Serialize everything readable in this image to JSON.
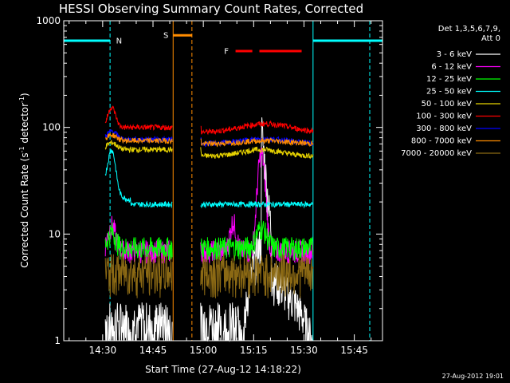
{
  "chart_data": {
    "type": "line",
    "title": "HESSI Observing Summary Count Rates, Corrected",
    "xlabel": "Start Time (27-Aug-12 14:18:22)",
    "ylabel": "Corrected Count Rate (s⁻¹ detector⁻¹)",
    "ylabel_parts": {
      "main": "Corrected Count Rate (s",
      "sup1": "-1",
      "mid": " detector",
      "sup2": "-1",
      "end": ")"
    },
    "y_scale": "log",
    "ylim": [
      1,
      1000
    ],
    "xlim_minutes": [
      0,
      95
    ],
    "x_ticks": [
      {
        "label": "14:30",
        "t": 11.6
      },
      {
        "label": "14:45",
        "t": 26.6
      },
      {
        "label": "15:00",
        "t": 41.6
      },
      {
        "label": "15:15",
        "t": 56.6
      },
      {
        "label": "15:30",
        "t": 71.6
      },
      {
        "label": "15:45",
        "t": 86.6
      }
    ],
    "y_ticks": [
      {
        "label": "1",
        "v": 1
      },
      {
        "label": "10",
        "v": 10
      },
      {
        "label": "100",
        "v": 100
      },
      {
        "label": "1000",
        "v": 1000
      }
    ],
    "legend_header": [
      "Det 1,3,5,6,7,9,",
      "Att 0"
    ],
    "legend_position": "top-right, outside plot",
    "series": [
      {
        "name": "3 - 6 keV",
        "color": "#ffffff"
      },
      {
        "name": "6 - 12 keV",
        "color": "#ff00ff"
      },
      {
        "name": "12 - 25 keV",
        "color": "#00ff00"
      },
      {
        "name": "25 - 50 keV",
        "color": "#00ffff"
      },
      {
        "name": "50 - 100 keV",
        "color": "#e6d200"
      },
      {
        "name": "100 - 300 keV",
        "color": "#ff0000"
      },
      {
        "name": "300 - 800 keV",
        "color": "#0000ff"
      },
      {
        "name": "800 - 7000 keV",
        "color": "#ff8c00"
      },
      {
        "name": "7000 - 20000 keV",
        "color": "#8b6914"
      }
    ],
    "night_markers": {
      "label": "N",
      "color": "#00ffff"
    },
    "saa_markers": {
      "label": "S",
      "color": "#ff8c00"
    },
    "flare_markers": {
      "label": "F",
      "color": "#ff0000"
    },
    "timestamp": "27-Aug-2012 19:01"
  }
}
